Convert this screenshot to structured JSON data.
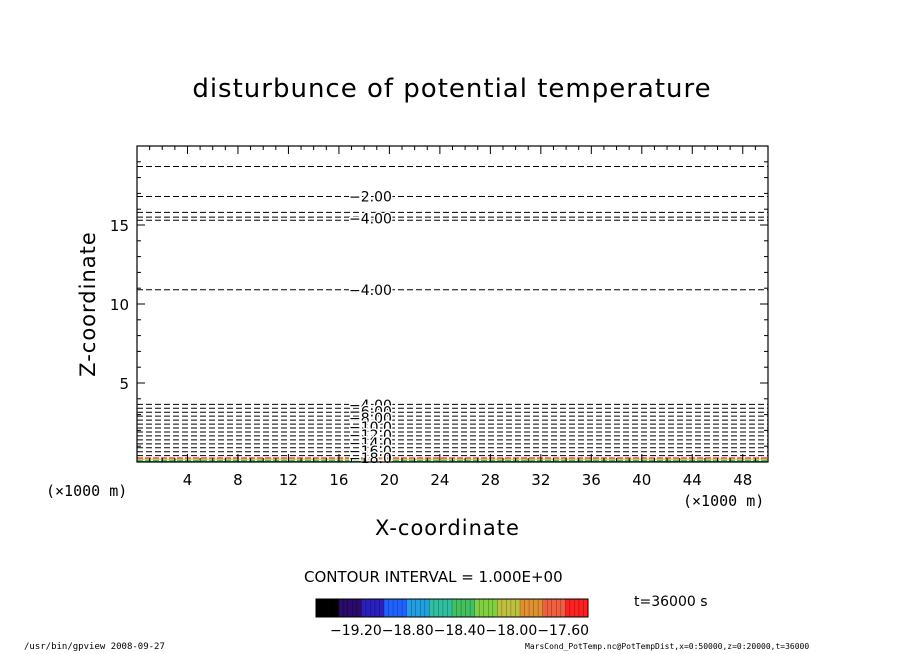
{
  "title": "disturbunce of potential temperature",
  "x_axis": {
    "title": "X-coordinate",
    "unit_left": "(×1000 m)",
    "unit_right": "(×1000 m)"
  },
  "y_axis": {
    "title": "Z-coordinate"
  },
  "contour_interval_text": "CONTOUR INTERVAL = 1.000E+00",
  "time_text": "t=36000  s",
  "colorbar_labels_text": "−19.20−18.80−18.40−18.00−17.60",
  "footer_left": "/usr/bin/gpview   2008-09-27",
  "footer_right": "MarsCond_PotTemp.nc@PotTempDist,x=0:50000,z=0:20000,t=36000",
  "chart_data": {
    "type": "contour",
    "xlim": [
      0,
      50
    ],
    "ylim": [
      0,
      20
    ],
    "x_ticks": [
      4,
      8,
      12,
      16,
      20,
      24,
      28,
      32,
      36,
      40,
      44,
      48
    ],
    "y_ticks": [
      5,
      10,
      15
    ],
    "grid": false,
    "contour_labels": [
      {
        "text": "−2.00",
        "x": 18.5,
        "z": 16.8
      },
      {
        "text": "−4.00",
        "x": 18.5,
        "z": 15.4
      },
      {
        "text": "−4.00",
        "x": 18.5,
        "z": 10.9
      },
      {
        "text": "−4.00",
        "x": 18.5,
        "z": 3.6
      },
      {
        "text": "−6.00",
        "x": 18.5,
        "z": 3.2
      },
      {
        "text": "−8.00",
        "x": 18.5,
        "z": 2.8
      },
      {
        "text": "−10.0",
        "x": 18.5,
        "z": 2.2
      },
      {
        "text": "−12.0",
        "x": 18.5,
        "z": 1.7
      },
      {
        "text": "−14.0",
        "x": 18.5,
        "z": 1.2
      },
      {
        "text": "−16.0",
        "x": 18.5,
        "z": 0.7
      },
      {
        "text": "−18.0",
        "x": 18.5,
        "z": 0.25
      }
    ],
    "contour_levels_z": [
      18.7,
      16.8,
      15.8,
      15.5,
      15.3,
      10.9,
      3.65,
      3.4,
      3.15,
      2.9,
      2.65,
      2.4,
      2.15,
      1.9,
      1.65,
      1.4,
      1.15,
      0.9,
      0.65,
      0.4
    ],
    "colorbar": {
      "min": -19.2,
      "max": -17.6,
      "tick_values": [
        -19.2,
        -18.8,
        -18.4,
        -18.0,
        -17.6
      ],
      "colors": [
        "#000000",
        "#2a0a6a",
        "#2a20c0",
        "#2060ff",
        "#20a0e0",
        "#30c0a0",
        "#40c060",
        "#80d040",
        "#c0c040",
        "#e09030",
        "#f06040",
        "#ff2020"
      ]
    }
  }
}
